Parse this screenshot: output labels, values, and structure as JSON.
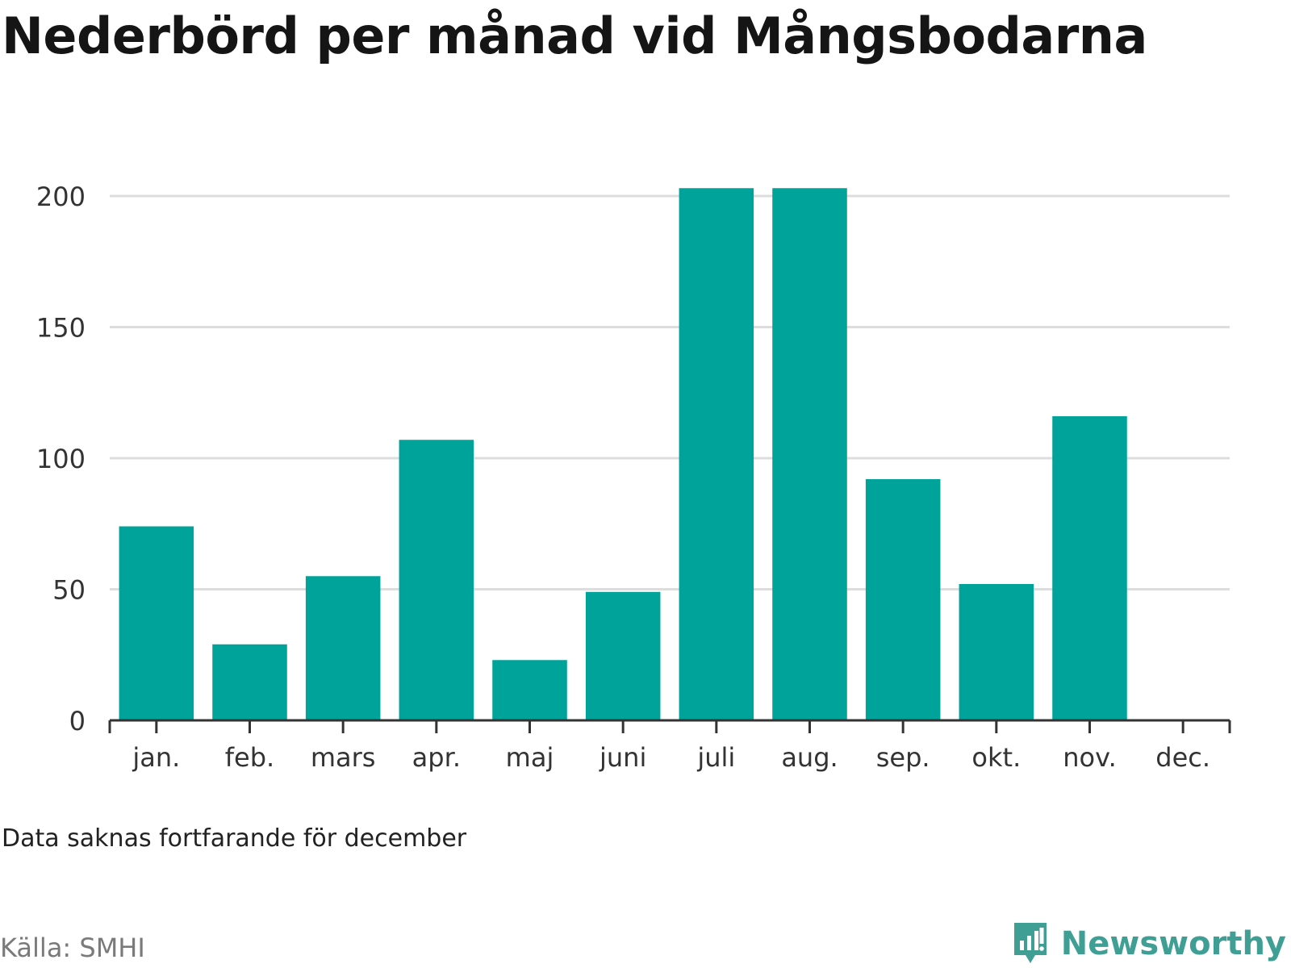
{
  "header": {
    "title": "Nederbörd per månad vid Mångsbodarna"
  },
  "chart_data": {
    "type": "bar",
    "categories": [
      "jan.",
      "feb.",
      "mars",
      "apr.",
      "maj",
      "juni",
      "juli",
      "aug.",
      "sep.",
      "okt.",
      "nov.",
      "dec."
    ],
    "values": [
      74,
      29,
      55,
      107,
      23,
      49,
      203,
      203,
      92,
      52,
      116,
      null
    ],
    "ylim": [
      0,
      200
    ],
    "yticks": [
      0,
      50,
      100,
      150,
      200
    ],
    "grid": true,
    "colors": {
      "bar": "#00a39a",
      "grid": "#dddddd",
      "axis": "#333333"
    }
  },
  "footer": {
    "note": "Data saknas fortfarande för december",
    "source": "Källa: SMHI",
    "brand": "Newsworthy",
    "brand_color": "#3f9f94",
    "brand_icon": "newsworthy-logo-icon"
  }
}
